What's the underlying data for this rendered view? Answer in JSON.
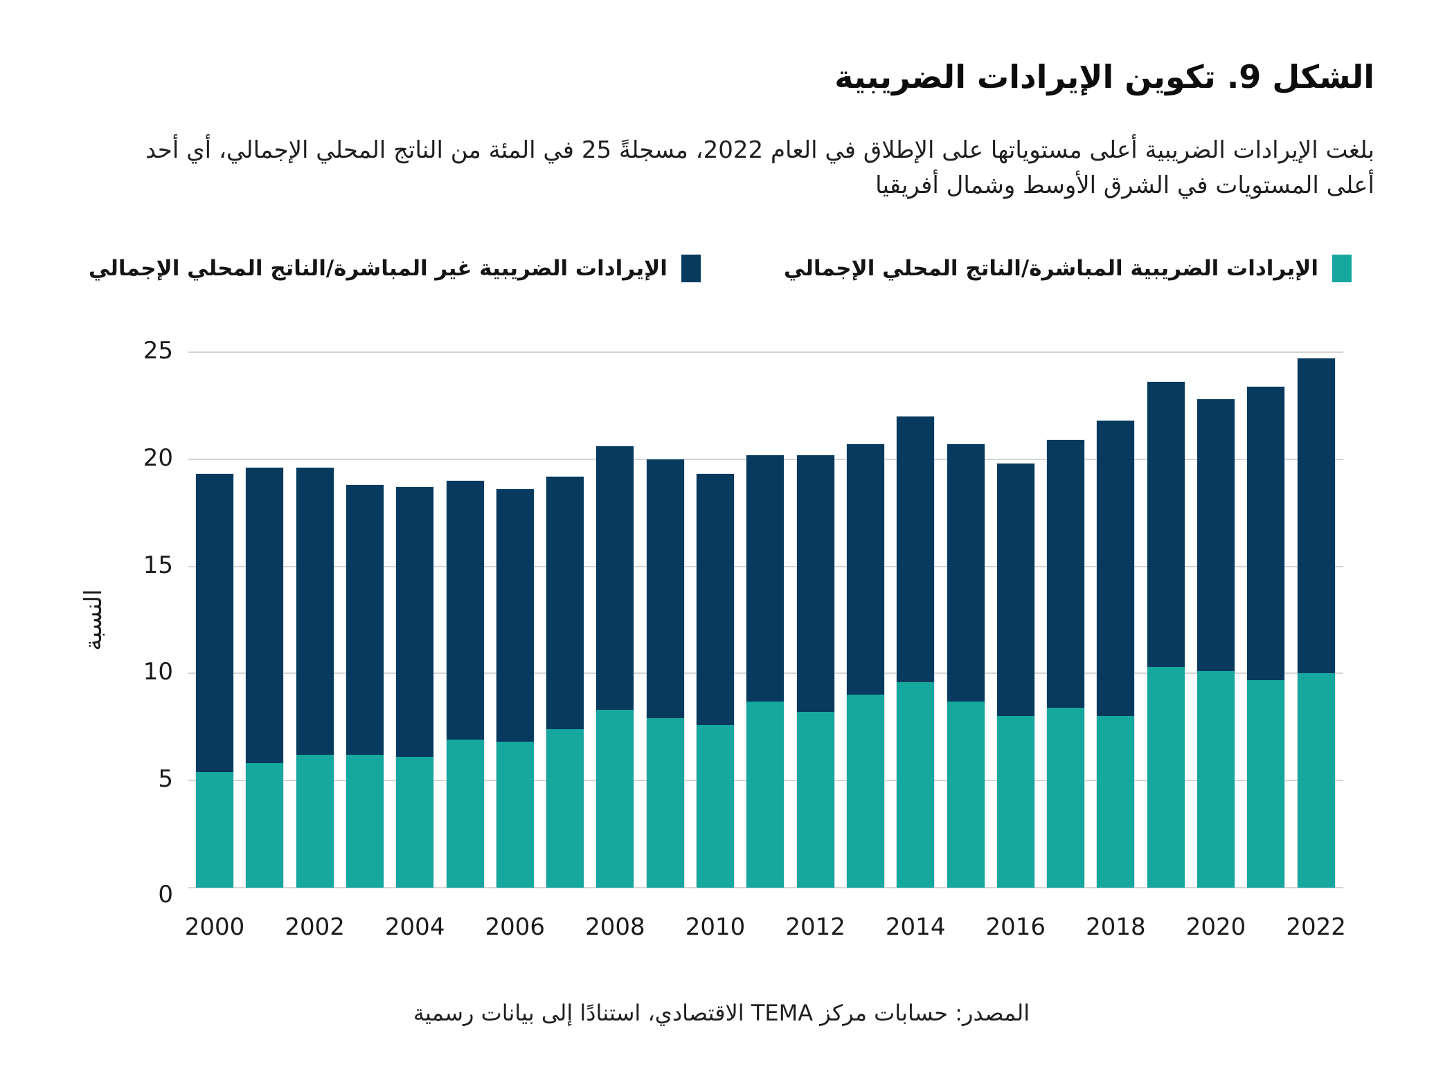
{
  "title": "الشكل 9. تكوين الإيرادات الضريبية",
  "subtitle": "بلغت الإيرادات الضريبية أعلى مستوياتها على الإطلاق في العام 2022، مسجلةً 25 في المئة من الناتج المحلي الإجمالي، أي أحد أعلى المستويات في الشرق الأوسط وشمال أفريقيا",
  "legend": [
    {
      "label": "الإيرادات الضريبية المباشرة/الناتج المحلي الإجمالي",
      "color": "#16A89E"
    },
    {
      "label": "الإيرادات الضريبية غير المباشرة/الناتج المحلي الإجمالي",
      "color": "#073A5E"
    }
  ],
  "source": "المصدر: حسابات مركز TEMA الاقتصادي، استنادًا إلى بيانات رسمية",
  "colors": {
    "direct_teal": "#16A89E",
    "indirect_navy": "#073A5E",
    "gridline": "#D2D4D6",
    "text": "#1A1A1A"
  },
  "chart_data": {
    "type": "bar",
    "stacked": true,
    "ylabel": "النسبة",
    "xlabel": "",
    "ylim": [
      0,
      25
    ],
    "yticks": [
      0,
      5,
      10,
      15,
      20,
      25
    ],
    "grid": "horizontal",
    "legend_position": "top",
    "categories": [
      2000,
      2001,
      2002,
      2003,
      2004,
      2005,
      2006,
      2007,
      2008,
      2009,
      2010,
      2011,
      2012,
      2013,
      2014,
      2015,
      2016,
      2017,
      2018,
      2019,
      2020,
      2021,
      2022
    ],
    "xtick_labels": [
      "2000",
      "2002",
      "2004",
      "2006",
      "2008",
      "2010",
      "2012",
      "2014",
      "2016",
      "2018",
      "2020",
      "2022"
    ],
    "series": [
      {
        "name": "الإيرادات الضريبية المباشرة/الناتج المحلي الإجمالي",
        "color": "#16A89E",
        "values": [
          5.4,
          5.8,
          6.2,
          6.2,
          6.1,
          6.9,
          6.8,
          7.4,
          8.3,
          7.9,
          7.6,
          8.7,
          8.2,
          9.0,
          9.6,
          8.7,
          8.0,
          8.4,
          8.0,
          10.3,
          10.1,
          9.7,
          10.0
        ]
      },
      {
        "name": "الإيرادات الضريبية غير المباشرة/الناتج المحلي الإجمالي",
        "color": "#073A5E",
        "values": [
          13.9,
          13.8,
          13.4,
          12.6,
          12.6,
          12.1,
          11.8,
          11.8,
          12.3,
          12.1,
          11.7,
          11.5,
          12.0,
          11.7,
          12.4,
          12.0,
          11.8,
          12.5,
          13.8,
          13.3,
          12.7,
          13.7,
          14.7
        ]
      }
    ],
    "totals": [
      19.3,
      19.6,
      19.6,
      18.8,
      18.7,
      19.0,
      18.6,
      19.2,
      20.6,
      20.0,
      19.3,
      20.2,
      20.2,
      20.7,
      22.0,
      20.7,
      19.8,
      20.9,
      21.8,
      23.6,
      22.8,
      23.4,
      24.7
    ]
  }
}
